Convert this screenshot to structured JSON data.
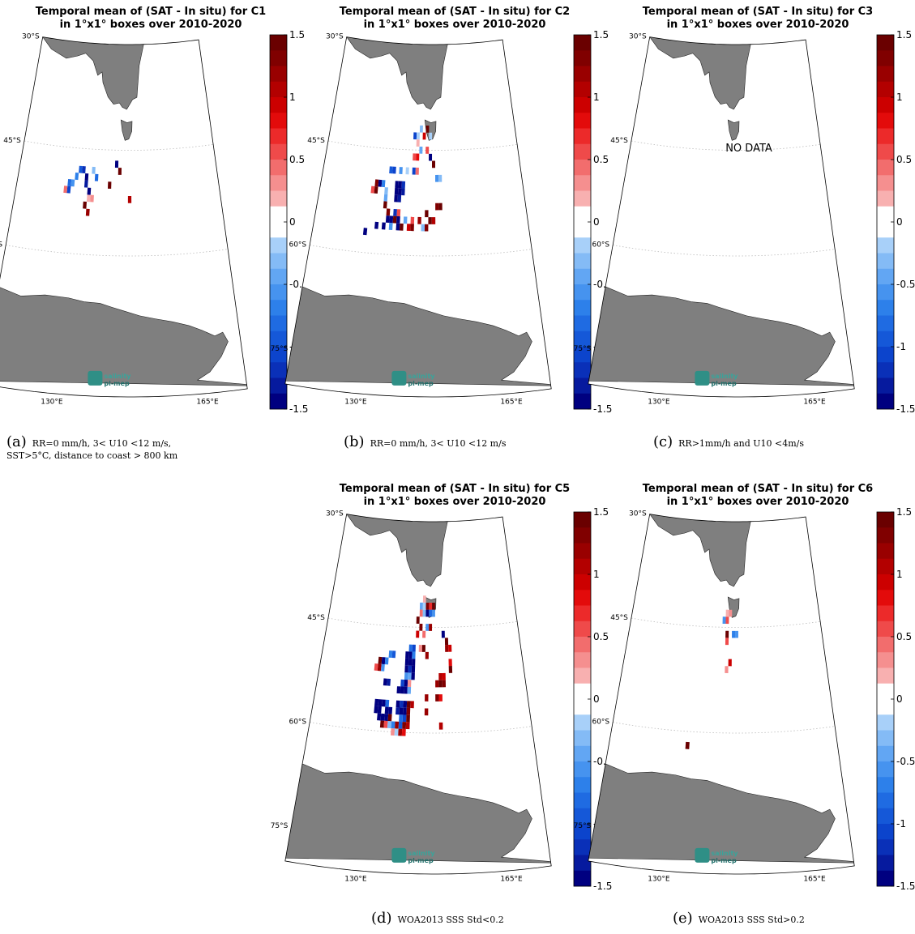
{
  "colorbar": {
    "ticks": [
      "1.5",
      "1",
      "0.5",
      "0",
      "-0.5",
      "-1",
      "-1.5"
    ],
    "range": [
      -1.5,
      1.5
    ]
  },
  "map_labels": {
    "lat": [
      "30°S",
      "45°S",
      "60°S",
      "75°S"
    ],
    "lon": [
      "130°E",
      "165°E"
    ],
    "logo": [
      "salinity",
      "pi-mep"
    ]
  },
  "panels": [
    {
      "key": "a",
      "title1": "Temporal mean of (SAT - In situ) for C1",
      "title2": "in 1°x1° boxes over 2010-2020",
      "caption_label": "(a)",
      "caption_lines": [
        "RR=0 mm/h, 3< U10 <12 m/s,",
        "SST>5°C, distance to coast > 800 km"
      ]
    },
    {
      "key": "b",
      "title1": "Temporal mean of (SAT - In situ) for C2",
      "title2": "in 1°x1° boxes over 2010-2020",
      "caption_label": "(b)",
      "caption_lines": [
        "RR=0 mm/h, 3< U10 <12 m/s"
      ]
    },
    {
      "key": "c",
      "title1": "Temporal mean of (SAT - In situ) for C3",
      "title2": "in 1°x1° boxes over 2010-2020",
      "caption_label": "(c)",
      "caption_lines": [
        "RR>1mm/h and U10 <4m/s"
      ],
      "note": "NO DATA"
    },
    {
      "key": "d",
      "title1": "Temporal mean of (SAT - In situ) for C5",
      "title2": "in 1°x1° boxes over 2010-2020",
      "caption_label": "(d)",
      "caption_lines": [
        "WOA2013 SSS Std<0.2"
      ]
    },
    {
      "key": "e",
      "title1": "Temporal mean of (SAT - In situ) for C6",
      "title2": "in 1°x1° boxes over 2010-2020",
      "caption_label": "(e)",
      "caption_lines": [
        "WOA2013 SSS Std>0.2"
      ]
    }
  ],
  "chart_data": [
    {
      "type": "heatmap",
      "title": "Temporal mean of (SAT - In situ) for C1 in 1°x1° boxes over 2010-2020",
      "colorbar_range": [
        -1.5,
        1.5
      ],
      "boxes": [
        [
          129,
          -50,
          -0.8
        ],
        [
          129,
          -51,
          -1
        ],
        [
          130,
          -50,
          -0.6
        ],
        [
          131,
          -49,
          -0.7
        ],
        [
          128,
          -51,
          0.4
        ],
        [
          132,
          -48,
          -0.9
        ],
        [
          133,
          -48,
          -1.2
        ],
        [
          134,
          -49,
          -1.5
        ],
        [
          134,
          -50,
          -1.3
        ],
        [
          135,
          -51,
          -1.4
        ],
        [
          135,
          -52,
          0.2
        ],
        [
          136,
          -52,
          0.3
        ],
        [
          134,
          -53,
          1.5
        ],
        [
          135,
          -54,
          1.2
        ],
        [
          136,
          -48,
          -0.3
        ],
        [
          137,
          -49,
          -0.8
        ],
        [
          143,
          -47,
          -1.5
        ],
        [
          144,
          -48,
          1.5
        ],
        [
          141,
          -50,
          1.4
        ],
        [
          147,
          -52,
          1.0
        ]
      ]
    },
    {
      "type": "heatmap",
      "title": "Temporal mean of (SAT - In situ) for C2 in 1°x1° boxes over 2010-2020",
      "colorbar_range": [
        -1.5,
        1.5
      ],
      "boxes": [
        [
          143,
          -42,
          -0.3
        ],
        [
          145,
          -42,
          1.5
        ],
        [
          141,
          -43,
          -1.0
        ],
        [
          142,
          -43,
          -0.2
        ],
        [
          144,
          -43,
          0.9
        ],
        [
          146,
          -43,
          -0.2
        ],
        [
          142,
          -44,
          0.2
        ],
        [
          143,
          -45,
          -0.4
        ],
        [
          145,
          -45,
          0.5
        ],
        [
          141,
          -46,
          0.6
        ],
        [
          142,
          -46,
          0.8
        ],
        [
          146,
          -46,
          -1.5
        ],
        [
          147,
          -47,
          1.5
        ],
        [
          134,
          -48,
          -0.9
        ],
        [
          135,
          -48,
          -1.1
        ],
        [
          137,
          -48,
          -0.6
        ],
        [
          139,
          -48,
          -0.2
        ],
        [
          140,
          -48,
          -0.1
        ],
        [
          141,
          -48,
          -1.0
        ],
        [
          142,
          -48,
          0.4
        ],
        [
          148,
          -49,
          -0.6
        ],
        [
          149,
          -49,
          -0.3
        ],
        [
          130,
          -50,
          1.3
        ],
        [
          131,
          -50,
          -1.5
        ],
        [
          132,
          -50,
          -0.7
        ],
        [
          136,
          -50,
          -1.5
        ],
        [
          137,
          -50,
          -1.4
        ],
        [
          138,
          -50,
          -1.2
        ],
        [
          129,
          -51,
          0.6
        ],
        [
          130,
          -51,
          1.4
        ],
        [
          133,
          -51,
          -0.3
        ],
        [
          136,
          -51,
          -1.5
        ],
        [
          137,
          -51,
          -1.5
        ],
        [
          138,
          -51,
          -1.3
        ],
        [
          133,
          -52,
          -0.4
        ],
        [
          136,
          -52,
          -1.5
        ],
        [
          137,
          -52,
          -1.3
        ],
        [
          148,
          -53,
          1.3
        ],
        [
          149,
          -53,
          1.4
        ],
        [
          133,
          -53,
          1.5
        ],
        [
          134,
          -54,
          1.3
        ],
        [
          136,
          -54,
          -1.2
        ],
        [
          137,
          -54,
          0.5
        ],
        [
          145,
          -54,
          1.4
        ],
        [
          134,
          -55,
          -1.5
        ],
        [
          135,
          -55,
          -1.4
        ],
        [
          136,
          -55,
          1.5
        ],
        [
          137,
          -55,
          -1.5
        ],
        [
          139,
          -55,
          -0.4
        ],
        [
          141,
          -55,
          0.5
        ],
        [
          143,
          -55,
          1.2
        ],
        [
          146,
          -55,
          1.5
        ],
        [
          147,
          -55,
          1.0
        ],
        [
          131,
          -56,
          -1.5
        ],
        [
          133,
          -56,
          -1.5
        ],
        [
          135,
          -56,
          -0.5
        ],
        [
          137,
          -56,
          -1.5
        ],
        [
          138,
          -56,
          1.4
        ],
        [
          140,
          -56,
          0.9
        ],
        [
          141,
          -56,
          1.3
        ],
        [
          144,
          -56,
          -0.3
        ],
        [
          145,
          -56,
          1.3
        ],
        [
          128,
          -57,
          -1.5
        ]
      ]
    },
    {
      "type": "heatmap",
      "title": "Temporal mean of (SAT - In situ) for C3 in 1°x1° boxes over 2010-2020",
      "colorbar_range": [
        -1.5,
        1.5
      ],
      "boxes": []
    },
    {
      "type": "heatmap",
      "title": "Temporal mean of (SAT - In situ) for C5 in 1°x1° boxes over 2010-2020",
      "colorbar_range": [
        -1.5,
        1.5
      ],
      "boxes": [
        [
          144,
          -41,
          0.2
        ],
        [
          143,
          -42,
          -0.4
        ],
        [
          144,
          -42,
          -0.2
        ],
        [
          145,
          -42,
          1.3
        ],
        [
          146,
          -42,
          0.7
        ],
        [
          147,
          -42,
          1.4
        ],
        [
          143,
          -43,
          0.4
        ],
        [
          144,
          -43,
          -0.3
        ],
        [
          145,
          -43,
          -1.5
        ],
        [
          146,
          -43,
          -0.8
        ],
        [
          147,
          -43,
          -0.6
        ],
        [
          142,
          -44,
          1.5
        ],
        [
          145,
          -45,
          -0.5
        ],
        [
          146,
          -45,
          1.2
        ],
        [
          143,
          -45,
          1.3
        ],
        [
          144,
          -46,
          0.4
        ],
        [
          142,
          -46,
          0.9
        ],
        [
          150,
          -46,
          -1.4
        ],
        [
          151,
          -47,
          1.5
        ],
        [
          140,
          -48,
          -0.8
        ],
        [
          141,
          -48,
          -1.0
        ],
        [
          143,
          -48,
          0.3
        ],
        [
          144,
          -48,
          1.4
        ],
        [
          151,
          -48,
          1.2
        ],
        [
          152,
          -48,
          0.9
        ],
        [
          134,
          -49,
          -0.7
        ],
        [
          135,
          -49,
          -0.9
        ],
        [
          139,
          -49,
          -1.5
        ],
        [
          140,
          -49,
          -1.5
        ],
        [
          141,
          -49,
          -0.7
        ],
        [
          131,
          -50,
          1.4
        ],
        [
          132,
          -50,
          -1.5
        ],
        [
          133,
          -50,
          -0.7
        ],
        [
          139,
          -50,
          -1.5
        ],
        [
          140,
          -50,
          -1.5
        ],
        [
          141,
          -50,
          -1.4
        ],
        [
          145,
          -49,
          1.2
        ],
        [
          152,
          -50,
          0.8
        ],
        [
          130,
          -51,
          0.5
        ],
        [
          131,
          -51,
          1.2
        ],
        [
          132,
          -51,
          -0.5
        ],
        [
          139,
          -51,
          -1.5
        ],
        [
          140,
          -51,
          -1.2
        ],
        [
          141,
          -51,
          -1.5
        ],
        [
          152,
          -51,
          1.5
        ],
        [
          149,
          -52,
          1.1
        ],
        [
          150,
          -52,
          0.9
        ],
        [
          139,
          -52,
          -0.6
        ],
        [
          140,
          -52,
          -0.4
        ],
        [
          141,
          -52,
          -1.5
        ],
        [
          133,
          -53,
          -1.5
        ],
        [
          134,
          -53,
          -1.3
        ],
        [
          138,
          -53,
          -1.0
        ],
        [
          139,
          -53,
          -1.5
        ],
        [
          140,
          -53,
          0.3
        ],
        [
          148,
          -53,
          1.2
        ],
        [
          149,
          -53,
          1.4
        ],
        [
          150,
          -53,
          1.3
        ],
        [
          137,
          -54,
          -1.5
        ],
        [
          138,
          -54,
          -1.4
        ],
        [
          139,
          -54,
          -1.5
        ],
        [
          140,
          -54,
          -0.4
        ],
        [
          145,
          -55,
          1.2
        ],
        [
          148,
          -55,
          1.3
        ],
        [
          149,
          -55,
          0.8
        ],
        [
          131,
          -56,
          -1.5
        ],
        [
          132,
          -56,
          -1.5
        ],
        [
          133,
          -56,
          -1.5
        ],
        [
          134,
          -56,
          -0.8
        ],
        [
          137,
          -56,
          -1.5
        ],
        [
          138,
          -56,
          -1.2
        ],
        [
          139,
          -56,
          -1.5
        ],
        [
          140,
          -56,
          1.5
        ],
        [
          141,
          -56,
          1.0
        ],
        [
          131,
          -57,
          -1.5
        ],
        [
          132,
          -57,
          -1.5
        ],
        [
          134,
          -57,
          -1.5
        ],
        [
          135,
          -57,
          -1.5
        ],
        [
          137,
          -57,
          -1.3
        ],
        [
          138,
          -57,
          -1.5
        ],
        [
          139,
          -57,
          -1.5
        ],
        [
          140,
          -57,
          1.3
        ],
        [
          145,
          -57,
          1.2
        ],
        [
          132,
          -58,
          -1.5
        ],
        [
          133,
          -58,
          -1.5
        ],
        [
          134,
          -58,
          -1.4
        ],
        [
          135,
          -58,
          1.5
        ],
        [
          138,
          -58,
          -0.8
        ],
        [
          139,
          -58,
          -1.0
        ],
        [
          140,
          -58,
          1.5
        ],
        [
          133,
          -59,
          1.4
        ],
        [
          134,
          -59,
          0.6
        ],
        [
          135,
          -59,
          -0.3
        ],
        [
          136,
          -59,
          -0.7
        ],
        [
          137,
          -59,
          1.2
        ],
        [
          138,
          -59,
          -0.9
        ],
        [
          139,
          -59,
          1.3
        ],
        [
          140,
          -59,
          1.0
        ],
        [
          136,
          -60,
          0.3
        ],
        [
          137,
          -60,
          -0.2
        ],
        [
          138,
          -60,
          1.2
        ],
        [
          139,
          -60,
          0.8
        ],
        [
          149,
          -59,
          1.1
        ]
      ]
    },
    {
      "type": "heatmap",
      "title": "Temporal mean of (SAT - In situ) for C6 in 1°x1° boxes over 2010-2020",
      "colorbar_range": [
        -1.5,
        1.5
      ],
      "boxes": [
        [
          144,
          -43,
          0.2
        ],
        [
          145,
          -43,
          0.3
        ],
        [
          143,
          -44,
          -0.6
        ],
        [
          144,
          -44,
          0.6
        ],
        [
          144,
          -46,
          1.5
        ],
        [
          144,
          -47,
          0.6
        ],
        [
          146,
          -46,
          -0.7
        ],
        [
          147,
          -46,
          -0.6
        ],
        [
          144,
          -51,
          0.3
        ],
        [
          145,
          -50,
          0.9
        ],
        [
          134,
          -62,
          1.5
        ]
      ]
    }
  ]
}
